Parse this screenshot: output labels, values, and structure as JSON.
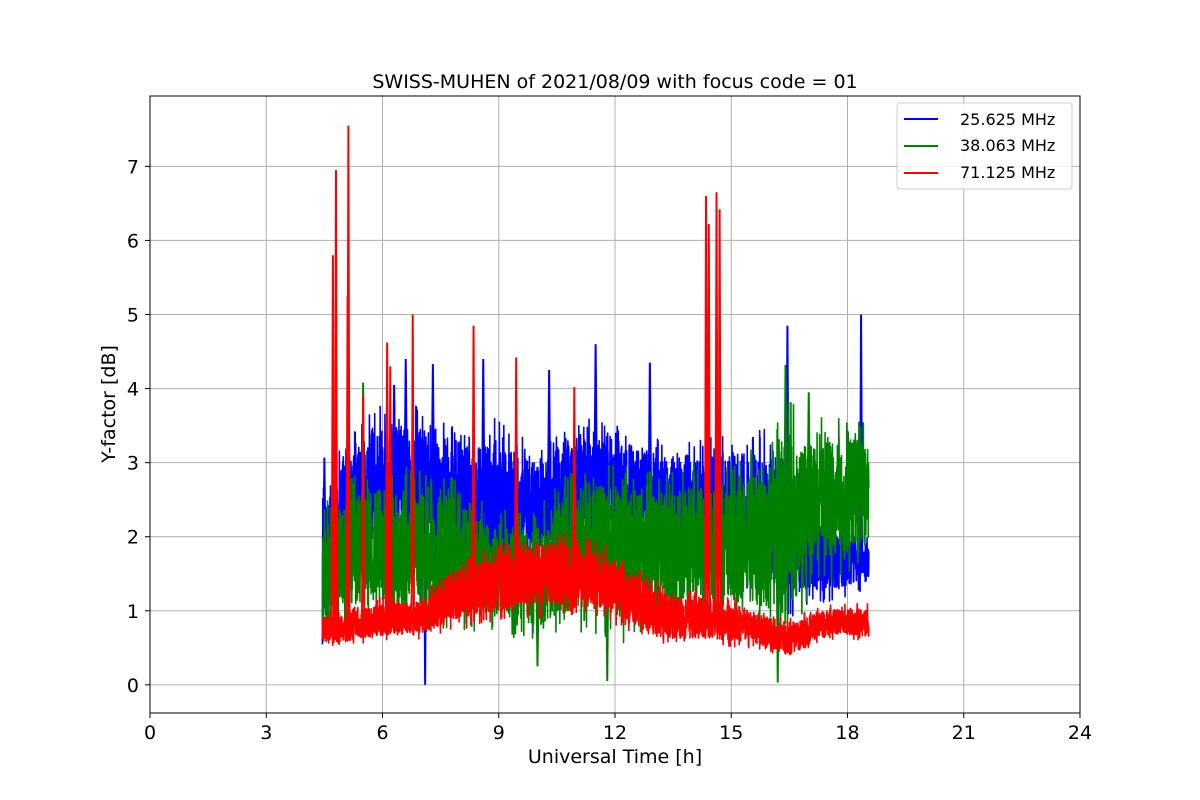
{
  "chart_data": {
    "type": "line",
    "title": "SWISS-MUHEN of 2021/08/09 with focus code = 01",
    "xlabel": "Universal Time [h]",
    "ylabel": "Y-factor [dB]",
    "xlim": [
      0,
      24
    ],
    "ylim": [
      -0.38,
      7.95
    ],
    "xticks": [
      0,
      3,
      6,
      9,
      12,
      15,
      18,
      21,
      24
    ],
    "yticks": [
      0,
      1,
      2,
      3,
      4,
      5,
      6,
      7
    ],
    "grid": true,
    "legend_position": "top-right",
    "series": [
      {
        "name": "25.625 MHz",
        "color": "#0000ff",
        "x_range": [
          4.45,
          18.55
        ],
        "profile_x": [
          4.45,
          5.0,
          6.0,
          7.0,
          8.0,
          9.0,
          10.0,
          11.0,
          12.0,
          13.0,
          14.0,
          15.0,
          16.0,
          16.5,
          17.0,
          18.0,
          18.55
        ],
        "profile_low": [
          0.5,
          1.2,
          1.7,
          1.5,
          1.5,
          1.3,
          1.6,
          1.8,
          2.0,
          1.7,
          1.4,
          1.5,
          1.0,
          0.9,
          1.0,
          1.2,
          1.3
        ],
        "profile_high": [
          2.7,
          3.3,
          3.9,
          3.8,
          3.6,
          3.6,
          3.3,
          3.6,
          3.6,
          3.4,
          3.3,
          3.4,
          3.5,
          3.4,
          2.4,
          2.2,
          2.0
        ],
        "peaks": [
          {
            "x": 4.5,
            "y": 3.07
          },
          {
            "x": 4.7,
            "y": 2.5
          },
          {
            "x": 6.3,
            "y": 4.05
          },
          {
            "x": 6.6,
            "y": 4.4
          },
          {
            "x": 7.3,
            "y": 4.33
          },
          {
            "x": 7.1,
            "y": 0.0
          },
          {
            "x": 8.6,
            "y": 4.4
          },
          {
            "x": 10.3,
            "y": 4.25
          },
          {
            "x": 11.5,
            "y": 4.6
          },
          {
            "x": 12.9,
            "y": 4.35
          },
          {
            "x": 16.45,
            "y": 4.85
          },
          {
            "x": 18.35,
            "y": 5.0
          }
        ]
      },
      {
        "name": "38.063 MHz",
        "color": "#008000",
        "x_range": [
          4.45,
          18.55
        ],
        "profile_x": [
          4.45,
          5.0,
          6.0,
          7.0,
          8.0,
          9.0,
          10.0,
          11.0,
          12.0,
          13.0,
          14.0,
          15.0,
          16.0,
          16.5,
          17.0,
          18.0,
          18.55
        ],
        "profile_low": [
          0.5,
          0.8,
          0.8,
          0.7,
          0.7,
          0.7,
          0.5,
          0.7,
          0.5,
          0.7,
          0.8,
          0.8,
          0.6,
          0.4,
          1.2,
          1.5,
          1.6
        ],
        "profile_high": [
          2.4,
          2.8,
          3.0,
          2.9,
          2.8,
          2.4,
          2.4,
          3.0,
          3.1,
          2.9,
          3.0,
          3.1,
          3.3,
          3.9,
          3.6,
          3.7,
          3.5
        ],
        "peaks": [
          {
            "x": 5.5,
            "y": 4.08
          },
          {
            "x": 16.4,
            "y": 4.32
          },
          {
            "x": 17.0,
            "y": 3.95
          },
          {
            "x": 11.8,
            "y": 0.05
          },
          {
            "x": 16.2,
            "y": 0.03
          },
          {
            "x": 10.0,
            "y": 0.25
          }
        ]
      },
      {
        "name": "71.125 MHz",
        "color": "#ff0000",
        "x_range": [
          4.45,
          18.55
        ],
        "profile_x": [
          4.45,
          5.0,
          6.0,
          7.0,
          7.8,
          8.5,
          9.5,
          10.5,
          11.5,
          12.5,
          13.5,
          14.5,
          15.5,
          16.0,
          16.5,
          17.5,
          18.55
        ],
        "profile_low": [
          0.5,
          0.5,
          0.6,
          0.6,
          0.7,
          0.8,
          0.9,
          0.9,
          0.9,
          0.7,
          0.5,
          0.5,
          0.5,
          0.4,
          0.3,
          0.6,
          0.6
        ],
        "profile_high": [
          1.0,
          1.0,
          1.2,
          1.2,
          1.7,
          1.8,
          2.0,
          2.1,
          2.0,
          1.6,
          1.3,
          1.3,
          1.1,
          1.0,
          0.9,
          1.1,
          1.1
        ],
        "peaks": [
          {
            "x": 4.72,
            "y": 5.8
          },
          {
            "x": 4.8,
            "y": 6.95
          },
          {
            "x": 5.1,
            "y": 5.25
          },
          {
            "x": 5.12,
            "y": 7.55
          },
          {
            "x": 5.5,
            "y": 3.9
          },
          {
            "x": 6.12,
            "y": 4.62
          },
          {
            "x": 6.2,
            "y": 4.3
          },
          {
            "x": 6.78,
            "y": 5.0
          },
          {
            "x": 8.35,
            "y": 4.85
          },
          {
            "x": 9.45,
            "y": 4.42
          },
          {
            "x": 10.95,
            "y": 4.02
          },
          {
            "x": 14.35,
            "y": 6.6
          },
          {
            "x": 14.42,
            "y": 6.22
          },
          {
            "x": 14.62,
            "y": 6.65
          },
          {
            "x": 14.7,
            "y": 6.42
          }
        ]
      }
    ]
  }
}
